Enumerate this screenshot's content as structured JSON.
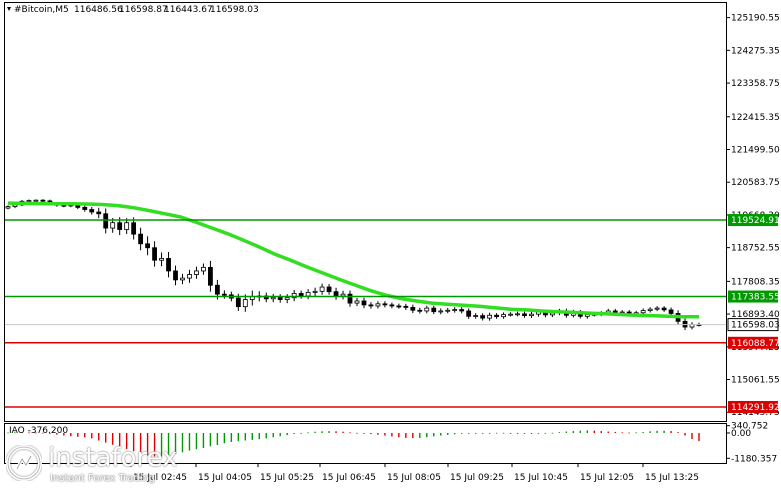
{
  "chart_data": {
    "type": "candlestick",
    "title": "#Bitcoin,M5",
    "ohlc": {
      "open": "116486.56",
      "high": "116598.87",
      "low": "116443.67",
      "close": "116598.03"
    },
    "price_axis": {
      "ylim": [
        113900,
        125600
      ],
      "ticks": [
        "125190.55",
        "124275.35",
        "123358.75",
        "122415.35",
        "121499.50",
        "120583.75",
        "119668.30",
        "118752.55",
        "117808.35",
        "116893.40",
        "115977.25",
        "115061.55",
        "114145.75"
      ]
    },
    "time_axis": {
      "ticks": [
        "15 Jul 02:45",
        "15 Jul 04:05",
        "15 Jul 05:25",
        "15 Jul 06:45",
        "15 Jul 08:05",
        "15 Jul 09:25",
        "15 Jul 10:45",
        "15 Jul 12:05",
        "15 Jul 13:25"
      ]
    },
    "price_levels": [
      {
        "label": "119524.91",
        "value": 119524.91,
        "color": "#009900"
      },
      {
        "label": "117383.55",
        "value": 117383.55,
        "color": "#009900"
      },
      {
        "label": "116088.77",
        "value": 116088.77,
        "color": "#dd0000"
      },
      {
        "label": "114291.92",
        "value": 114291.92,
        "color": "#dd0000"
      }
    ],
    "current_price": {
      "label": "116598.03",
      "value": 116598.03
    },
    "moving_average": {
      "color": "#33dd22",
      "values": [
        119999,
        119990,
        119985,
        119980,
        119980,
        119975,
        119960,
        119930,
        119870,
        119790,
        119700,
        119610,
        119460,
        119300,
        119140,
        118960,
        118770,
        118570,
        118400,
        118220,
        118050,
        117880,
        117720,
        117560,
        117430,
        117330,
        117260,
        117200,
        117170,
        117140,
        117110,
        117070,
        117030,
        117010,
        116980,
        116960,
        116940,
        116920,
        116900,
        116880,
        116860,
        116850,
        116830,
        116820,
        116820
      ]
    },
    "candles": {
      "close": [
        119900,
        119950,
        120050,
        120070,
        120080,
        120060,
        119990,
        119940,
        119920,
        119950,
        119880,
        119820,
        119750,
        119700,
        119300,
        119450,
        119260,
        119450,
        119130,
        118860,
        118750,
        118400,
        118450,
        118100,
        117850,
        117900,
        118000,
        118100,
        118200,
        117700,
        117450,
        117430,
        117340,
        117100,
        117300,
        117380,
        117400,
        117320,
        117360,
        117300,
        117350,
        117470,
        117400,
        117500,
        117530,
        117650,
        117520,
        117400,
        117450,
        117200,
        117260,
        117150,
        117120,
        117180,
        117150,
        117120,
        117110,
        117080,
        117000,
        116980,
        117060,
        116960,
        116980,
        117000,
        117020,
        116980,
        116830,
        116850,
        116780,
        116860,
        116820,
        116880,
        116890,
        116900,
        116850,
        116890,
        116950,
        116870,
        116920,
        116980,
        116860,
        116950,
        116830,
        116880,
        116890,
        116920,
        116980,
        116940,
        116950,
        116880,
        116930,
        116990,
        117030,
        117060,
        117010,
        116910,
        116690,
        116530,
        116600,
        116598
      ],
      "volatility": [
        60,
        70,
        60,
        50,
        40,
        50,
        60,
        70,
        60,
        60,
        80,
        100,
        120,
        200,
        250,
        220,
        260,
        210,
        250,
        300,
        350,
        300,
        280,
        300,
        250,
        200,
        220,
        200,
        180,
        300,
        250,
        180,
        150,
        200,
        240,
        280,
        220,
        160,
        160,
        150,
        170,
        160,
        130,
        150,
        170,
        160,
        140,
        180,
        160,
        170,
        140,
        150,
        130,
        120,
        120,
        110,
        110,
        120,
        130,
        120,
        110,
        110,
        120,
        110,
        110,
        110,
        120,
        110,
        110,
        120,
        100,
        100,
        90,
        100,
        100,
        110,
        120,
        110,
        100,
        100,
        110,
        100,
        100,
        110,
        90,
        90,
        100,
        100,
        90,
        90,
        90,
        100,
        90,
        90,
        90,
        110,
        150,
        140,
        110,
        90
      ]
    },
    "indicator": {
      "label": "IAO -376.200",
      "ticks": [
        "340.752",
        "0.00",
        "-1180.357"
      ],
      "ylim": [
        -1400,
        420
      ],
      "values": [
        20,
        30,
        40,
        30,
        20,
        10,
        -30,
        -80,
        -120,
        -150,
        -180,
        -200,
        -250,
        -350,
        -450,
        -550,
        -650,
        -750,
        -850,
        -950,
        -1050,
        -1100,
        -1100,
        -1050,
        -980,
        -900,
        -820,
        -760,
        -700,
        -620,
        -560,
        -480,
        -420,
        -380,
        -350,
        -320,
        -290,
        -250,
        -200,
        -150,
        -100,
        -50,
        0,
        30,
        60,
        80,
        90,
        80,
        60,
        30,
        10,
        -20,
        -50,
        -80,
        -120,
        -160,
        -200,
        -230,
        -240,
        -230,
        -200,
        -160,
        -120,
        -90,
        -60,
        -40,
        -30,
        -20,
        -10,
        0,
        10,
        10,
        0,
        -20,
        -30,
        -40,
        -30,
        -10,
        10,
        40,
        70,
        90,
        110,
        120,
        110,
        90,
        70,
        50,
        30,
        20,
        30,
        50,
        80,
        100,
        110,
        90,
        40,
        -120,
        -280,
        -376
      ]
    }
  },
  "watermark": {
    "brand": "instaforex",
    "tagline": "Instant Forex Trading"
  }
}
